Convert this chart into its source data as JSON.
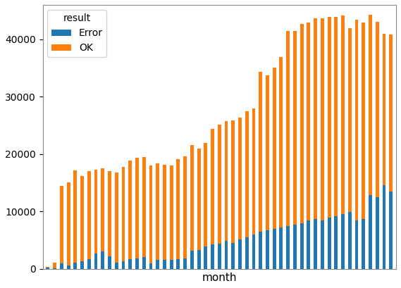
{
  "title": "",
  "xlabel": "month",
  "ylabel": "",
  "legend_title": "result",
  "legend_labels": [
    "Error",
    "OK"
  ],
  "error_color": "#1f77b4",
  "ok_color": "#ff7f0e",
  "background_color": "#ffffff",
  "error_values": [
    200,
    100,
    900,
    500,
    1100,
    1300,
    1600,
    2700,
    3000,
    2200,
    1100,
    1300,
    1600,
    1800,
    2000,
    900,
    1500,
    1500,
    1500,
    1700,
    1800,
    3100,
    3200,
    3900,
    4200,
    4400,
    4900,
    4500,
    5100,
    5500,
    6000,
    6400,
    6700,
    7000,
    7200,
    7400,
    7700,
    7900,
    8400,
    8700,
    8400,
    8900,
    9100,
    9500,
    9900,
    8400,
    8700,
    12800,
    12500,
    14500,
    13500
  ],
  "ok_values": [
    100,
    900,
    13500,
    14500,
    16000,
    14900,
    15400,
    14600,
    14500,
    14800,
    15700,
    16400,
    17300,
    17500,
    17500,
    17100,
    16800,
    16600,
    16500,
    17400,
    17800,
    18500,
    17700,
    18000,
    20200,
    20700,
    20800,
    21300,
    21300,
    21900,
    22000,
    27900,
    27000,
    28100,
    29700,
    34000,
    33800,
    34800,
    34500,
    35000,
    35200,
    35000,
    34800,
    34700,
    32000,
    35000,
    34200,
    31500,
    30600,
    26500,
    27300
  ],
  "ylim": [
    0,
    46000
  ],
  "yticks": [
    0,
    10000,
    20000,
    30000,
    40000
  ],
  "bar_width": 0.5,
  "figsize": [
    5.69,
    4.09
  ],
  "dpi": 100
}
